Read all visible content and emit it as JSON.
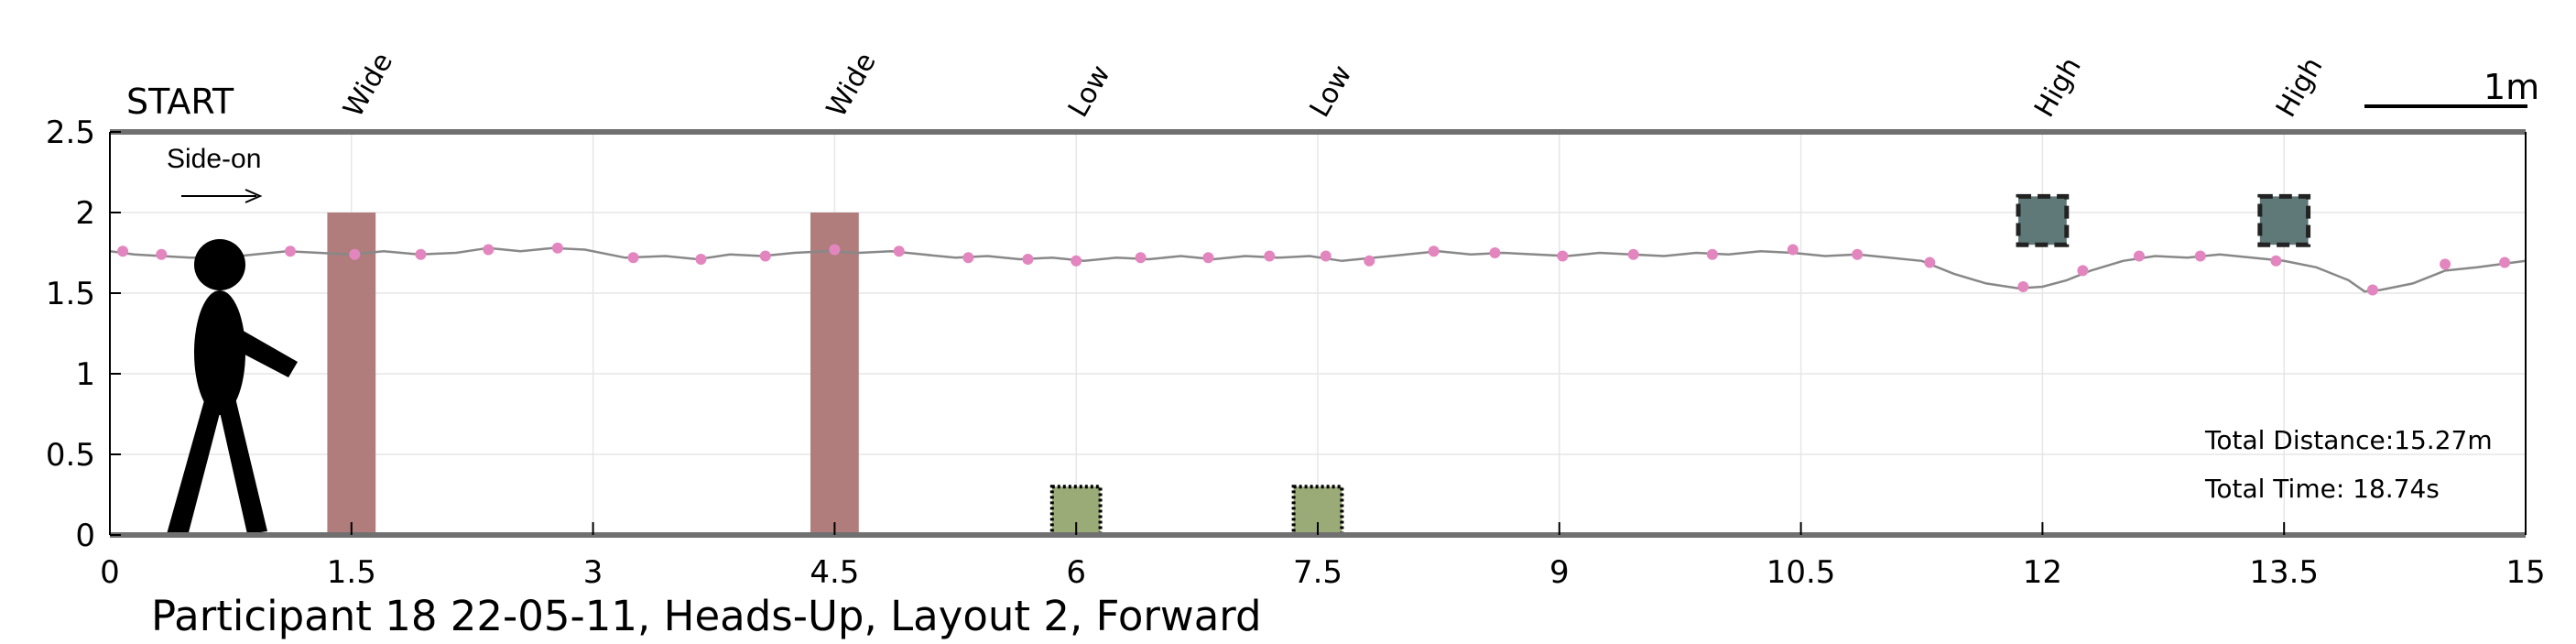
{
  "chart_data": {
    "type": "line",
    "title": "",
    "caption": "Participant 18 22-05-11, Heads-Up, Layout 2, Forward",
    "xlabel": "",
    "ylabel": "",
    "xlim": [
      0,
      15
    ],
    "ylim": [
      0,
      2.5
    ],
    "x_ticks": [
      "0",
      "1.5",
      "3",
      "4.5",
      "6",
      "7.5",
      "9",
      "10.5",
      "12",
      "13.5",
      "15"
    ],
    "y_ticks": [
      "0",
      "0.5",
      "1",
      "1.5",
      "2",
      "2.5"
    ],
    "grid": true,
    "start_label": "START",
    "direction_label": "Side-on",
    "scale_bar_label": "1m",
    "total_distance": "Total Distance:15.27m",
    "total_time": "Total Time: 18.74s",
    "obstacles": [
      {
        "label": "Wide",
        "type": "wide",
        "x": [
          1.35,
          1.65
        ],
        "y": [
          0,
          2
        ],
        "color": "#b07c7c"
      },
      {
        "label": "Wide",
        "type": "wide",
        "x": [
          4.35,
          4.65
        ],
        "y": [
          0,
          2
        ],
        "color": "#b07c7c"
      },
      {
        "label": "Low",
        "type": "low",
        "x": [
          5.85,
          6.15
        ],
        "y": [
          0,
          0.3
        ],
        "color": "#9aab78"
      },
      {
        "label": "Low",
        "type": "low",
        "x": [
          7.35,
          7.65
        ],
        "y": [
          0,
          0.3
        ],
        "color": "#9aab78"
      },
      {
        "label": "High",
        "type": "high",
        "x": [
          11.85,
          12.15
        ],
        "y": [
          1.8,
          2.1
        ],
        "color": "#5f7878"
      },
      {
        "label": "High",
        "type": "high",
        "x": [
          13.35,
          13.65
        ],
        "y": [
          1.8,
          2.1
        ],
        "color": "#5f7878"
      }
    ],
    "series": [
      {
        "trajectory": true,
        "color": "#888888",
        "x": [
          0,
          0.15,
          0.32,
          0.5,
          0.7,
          0.9,
          1.1,
          1.3,
          1.5,
          1.7,
          1.92,
          2.15,
          2.35,
          2.55,
          2.75,
          2.95,
          3.2,
          3.45,
          3.65,
          3.85,
          4.05,
          4.25,
          4.45,
          4.65,
          4.85,
          5.05,
          5.25,
          5.45,
          5.65,
          5.85,
          6.05,
          6.25,
          6.45,
          6.65,
          6.85,
          7.05,
          7.25,
          7.45,
          7.65,
          7.85,
          8.05,
          8.25,
          8.45,
          8.65,
          8.85,
          9.05,
          9.25,
          9.45,
          9.65,
          9.85,
          10.05,
          10.25,
          10.45,
          10.65,
          10.85,
          11.05,
          11.25,
          11.45,
          11.65,
          11.85,
          12.0,
          12.15,
          12.3,
          12.5,
          12.7,
          12.9,
          13.1,
          13.3,
          13.5,
          13.7,
          13.9,
          14.0,
          14.1,
          14.3,
          14.5,
          14.7,
          14.85,
          15.0
        ],
        "y": [
          1.76,
          1.74,
          1.73,
          1.72,
          1.72,
          1.74,
          1.76,
          1.75,
          1.74,
          1.76,
          1.74,
          1.75,
          1.78,
          1.76,
          1.78,
          1.77,
          1.72,
          1.73,
          1.71,
          1.74,
          1.73,
          1.75,
          1.76,
          1.75,
          1.76,
          1.74,
          1.72,
          1.73,
          1.71,
          1.72,
          1.7,
          1.72,
          1.71,
          1.73,
          1.71,
          1.73,
          1.72,
          1.73,
          1.7,
          1.72,
          1.74,
          1.76,
          1.74,
          1.75,
          1.74,
          1.73,
          1.75,
          1.74,
          1.73,
          1.75,
          1.74,
          1.76,
          1.75,
          1.73,
          1.74,
          1.72,
          1.7,
          1.62,
          1.56,
          1.53,
          1.54,
          1.58,
          1.64,
          1.7,
          1.73,
          1.72,
          1.74,
          1.72,
          1.7,
          1.66,
          1.58,
          1.51,
          1.52,
          1.56,
          1.64,
          1.66,
          1.68,
          1.7
        ]
      },
      {
        "markers": true,
        "color": "#e386bf",
        "x": [
          0.08,
          0.32,
          0.6,
          1.12,
          1.52,
          1.93,
          2.35,
          2.78,
          3.25,
          3.67,
          4.07,
          4.5,
          4.9,
          5.33,
          5.7,
          6.0,
          6.4,
          6.82,
          7.2,
          7.55,
          7.82,
          8.22,
          8.6,
          9.02,
          9.46,
          9.95,
          10.45,
          10.85,
          11.3,
          11.88,
          12.25,
          12.6,
          12.98,
          13.45,
          14.05,
          14.5,
          14.87
        ],
        "y": [
          1.76,
          1.74,
          1.73,
          1.76,
          1.74,
          1.74,
          1.77,
          1.78,
          1.72,
          1.71,
          1.73,
          1.77,
          1.76,
          1.72,
          1.71,
          1.7,
          1.72,
          1.72,
          1.73,
          1.73,
          1.7,
          1.76,
          1.75,
          1.73,
          1.74,
          1.74,
          1.77,
          1.74,
          1.69,
          1.54,
          1.64,
          1.73,
          1.73,
          1.7,
          1.52,
          1.68,
          1.69
        ]
      }
    ]
  }
}
